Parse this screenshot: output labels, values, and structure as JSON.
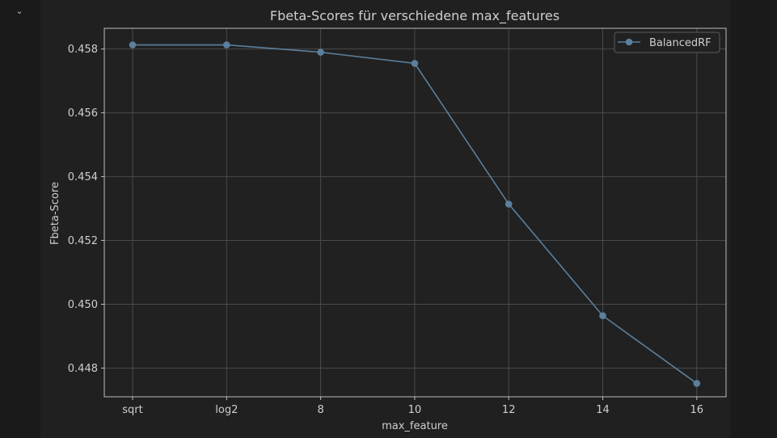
{
  "cell": {
    "collapse_icon": "chevron-down-icon"
  },
  "chart_data": {
    "type": "line",
    "title": "Fbeta-Scores für verschiedene max_features",
    "xlabel": "max_feature",
    "ylabel": "Fbeta-Score",
    "categories": [
      "sqrt",
      "log2",
      "8",
      "10",
      "12",
      "14",
      "16"
    ],
    "series": [
      {
        "name": "BalancedRF",
        "values": [
          0.45813,
          0.45813,
          0.4579,
          0.45755,
          0.45314,
          0.44964,
          0.44752
        ],
        "color": "#5b7f9c"
      }
    ],
    "ylim": [
      0.4471,
      0.45865
    ],
    "yticks": [
      0.448,
      0.45,
      0.452,
      0.454,
      0.456,
      0.458
    ],
    "ytick_labels": [
      "0.448",
      "0.450",
      "0.452",
      "0.454",
      "0.456",
      "0.458"
    ],
    "grid": true,
    "legend_position": "top-right",
    "colors": {
      "background": "#202020",
      "axes_face": "#212121",
      "axes_edge": "#bdbdbd",
      "grid": "#4a4a4a",
      "text": "#cfcfcf"
    }
  }
}
